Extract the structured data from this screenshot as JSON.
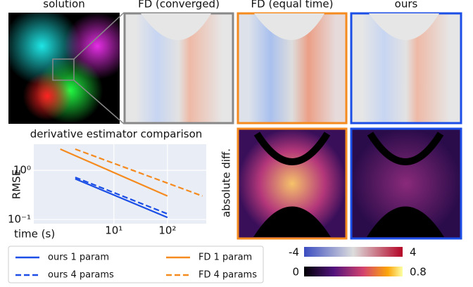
{
  "figure": {
    "panel_titles": [
      "solution",
      "FD (converged)",
      "FD (equal time)",
      "ours"
    ],
    "side_label": "absolute diff.",
    "colorbars": [
      {
        "min": -4,
        "max": 4
      },
      {
        "min": 0,
        "max": 0.8
      }
    ]
  },
  "chart_data": {
    "type": "line",
    "title": "derivative estimator comparison",
    "x_label": "time (s)",
    "y_label": "RMSE",
    "log_x": true,
    "log_y": true,
    "grid": true,
    "xlim": [
      0.32,
      530
    ],
    "ylim": [
      0.082,
      3.4
    ],
    "xticks": [
      {
        "value": 10,
        "label": "10¹"
      },
      {
        "value": 100,
        "label": "10²"
      }
    ],
    "yticks": [
      {
        "value": 0.1,
        "label": "10⁻¹"
      },
      {
        "value": 1,
        "label": "10⁰"
      }
    ],
    "series": [
      {
        "name": "ours 1 param",
        "color": "#1a4ee6",
        "dash": false,
        "x": [
          1.9,
          100
        ],
        "values": [
          0.67,
          0.11
        ]
      },
      {
        "name": "ours 4 params",
        "color": "#1a4ee6",
        "dash": true,
        "x": [
          1.9,
          100
        ],
        "values": [
          0.72,
          0.13
        ]
      },
      {
        "name": "FD 1 param",
        "color": "#f58a1f",
        "dash": false,
        "x": [
          1,
          100
        ],
        "values": [
          2.7,
          0.3
        ]
      },
      {
        "name": "FD 4 params",
        "color": "#f58a1f",
        "dash": true,
        "x": [
          1.9,
          450
        ],
        "values": [
          2.7,
          0.3
        ]
      }
    ]
  }
}
